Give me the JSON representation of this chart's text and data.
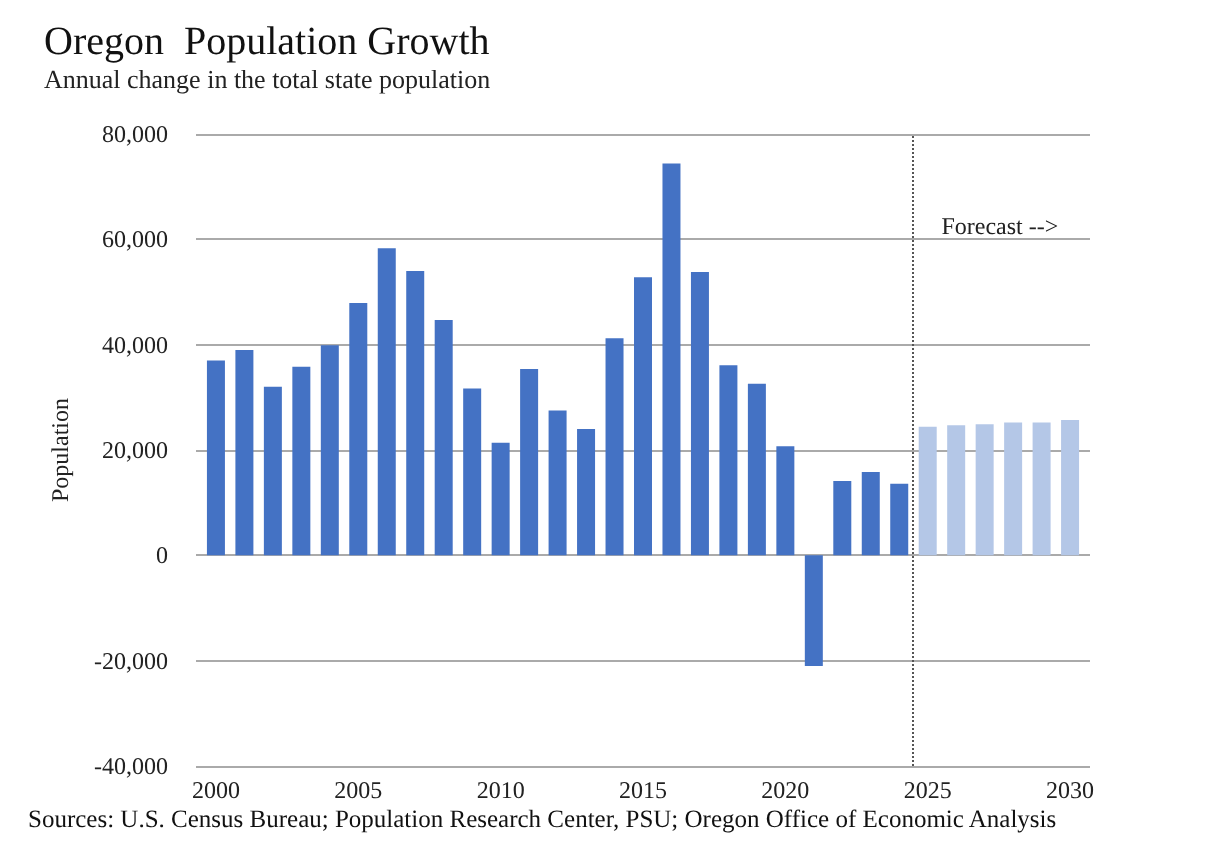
{
  "chart_data": {
    "type": "bar",
    "title": "Oregon  Population Growth",
    "subtitle": "Annual change in the total state population",
    "ylabel": "Population",
    "x": [
      2000,
      2001,
      2002,
      2003,
      2004,
      2005,
      2006,
      2007,
      2008,
      2009,
      2010,
      2011,
      2012,
      2013,
      2014,
      2015,
      2016,
      2017,
      2018,
      2019,
      2020,
      2021,
      2022,
      2023,
      2024,
      2025,
      2026,
      2027,
      2028,
      2029,
      2030
    ],
    "series": [
      {
        "color": "#4472c4",
        "values": [
          37000,
          39000,
          32000,
          35800,
          39900,
          47900,
          58300,
          54000,
          44700,
          31700,
          21400,
          35400,
          27500,
          24000,
          41200,
          52800,
          74400,
          53800,
          36100,
          32600,
          20700,
          -21000,
          14100,
          15800,
          13600,
          null,
          null,
          null,
          null,
          null,
          null
        ]
      },
      {
        "color": "#b4c7e7",
        "values": [
          null,
          null,
          null,
          null,
          null,
          null,
          null,
          null,
          null,
          null,
          null,
          null,
          null,
          null,
          null,
          null,
          null,
          null,
          null,
          null,
          null,
          null,
          null,
          null,
          null,
          24400,
          24700,
          24900,
          25200,
          25200,
          25700
        ]
      }
    ],
    "xlim": [
      1999.3,
      2030.7
    ],
    "xticks": [
      2000,
      2005,
      2010,
      2015,
      2020,
      2025,
      2030
    ],
    "ylim": [
      -40000,
      80000
    ],
    "yticks": [
      {
        "value": -40000,
        "label": "-40,000"
      },
      {
        "value": -20000,
        "label": "-20,000"
      },
      {
        "value": 0,
        "label": "0"
      },
      {
        "value": 20000,
        "label": "20,000"
      },
      {
        "value": 40000,
        "label": "40,000"
      },
      {
        "value": 60000,
        "label": "60,000"
      },
      {
        "value": 80000,
        "label": "80,000"
      }
    ],
    "grid": "y",
    "legend": false,
    "ref_lines": [
      {
        "axis": "x",
        "value": 2024.5,
        "label": "Forecast -->",
        "color": "#555555",
        "line_style": "dotted"
      }
    ],
    "annotations": [
      "Sources: U.S. Census Bureau; Population Research Center, PSU; Oregon Office of Economic Analysis"
    ]
  }
}
